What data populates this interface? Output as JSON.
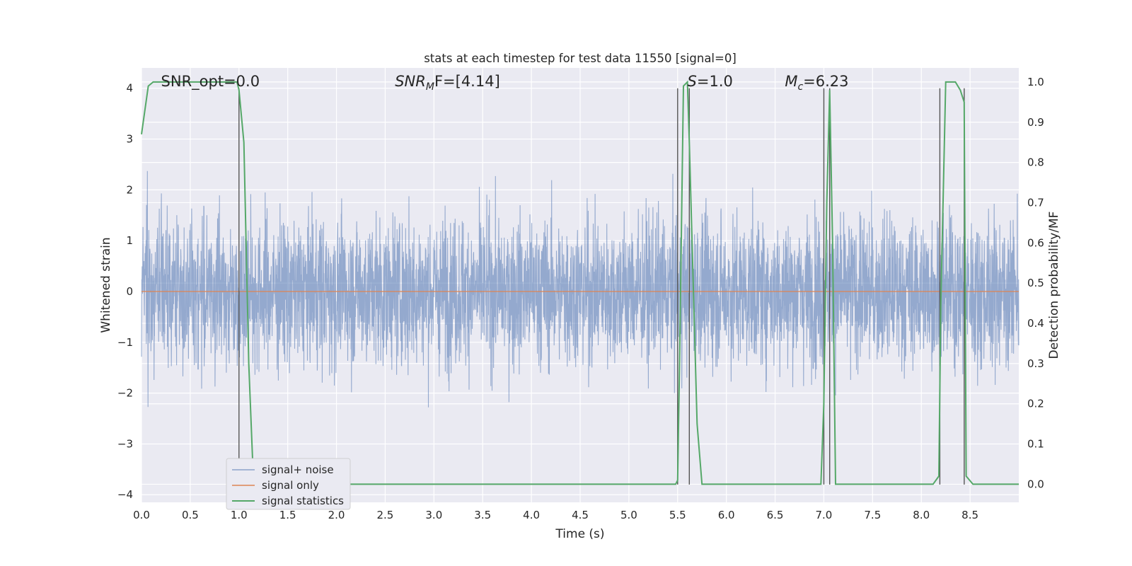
{
  "chart_data": {
    "type": "line",
    "title": "stats at each timestep for test data 11550 [signal=0]",
    "xlabel": "Time (s)",
    "ylabel": "Whitened strain",
    "y2label": "Detection probability/MF",
    "xlim": [
      0.0,
      9.0
    ],
    "ylim": [
      -4.15,
      4.4
    ],
    "y2lim": [
      -0.045,
      1.035
    ],
    "xticks": [
      "0.0",
      "0.5",
      "1.0",
      "1.5",
      "2.0",
      "2.5",
      "3.0",
      "3.5",
      "4.0",
      "4.5",
      "5.0",
      "5.5",
      "6.0",
      "6.5",
      "7.0",
      "7.5",
      "8.0",
      "8.5"
    ],
    "xtick_values": [
      0.0,
      0.5,
      1.0,
      1.5,
      2.0,
      2.5,
      3.0,
      3.5,
      4.0,
      4.5,
      5.0,
      5.5,
      6.0,
      6.5,
      7.0,
      7.5,
      8.0,
      8.5
    ],
    "yticks": [
      "−4",
      "−3",
      "−2",
      "−1",
      "0",
      "1",
      "2",
      "3",
      "4"
    ],
    "ytick_values": [
      -4,
      -3,
      -2,
      -1,
      0,
      1,
      2,
      3,
      4
    ],
    "y2ticks": [
      "0.0",
      "0.1",
      "0.2",
      "0.3",
      "0.4",
      "0.5",
      "0.6",
      "0.7",
      "0.8",
      "0.9",
      "1.0"
    ],
    "y2tick_values": [
      0.0,
      0.1,
      0.2,
      0.3,
      0.4,
      0.5,
      0.6,
      0.7,
      0.8,
      0.9,
      1.0
    ],
    "grid": true,
    "legend_placement": "lower-left",
    "annotations": [
      {
        "text": "SNR_opt=0.0",
        "x": 0.2
      },
      {
        "text": "SNR_MF=[4.14]",
        "x": 2.6,
        "base": "SNR",
        "sub": "M",
        "rest": "F=[4.14]"
      },
      {
        "text": "S=1.0",
        "x": 5.6,
        "base": "S",
        "sub": "",
        "rest": "=1.0"
      },
      {
        "text": "M_c=6.23",
        "x": 6.6,
        "base": "M",
        "sub": "c",
        "rest": "=6.23"
      }
    ],
    "series": [
      {
        "name": "signal+ noise",
        "axis": "left",
        "color": "#4c72b0",
        "kind": "noise",
        "typical_range": [
          -2.2,
          2.8
        ]
      },
      {
        "name": "signal only",
        "axis": "left",
        "color": "#dd8452",
        "kind": "flat",
        "value": 0.0
      },
      {
        "name": "signal statistics",
        "axis": "right",
        "color": "#55a868",
        "kind": "line",
        "x": [
          0.0,
          0.07,
          0.12,
          0.98,
          1.0,
          1.05,
          1.1,
          1.15,
          5.48,
          5.5,
          5.52,
          5.56,
          5.6,
          5.62,
          5.7,
          5.75,
          6.97,
          7.0,
          7.03,
          7.06,
          7.09,
          7.12,
          8.12,
          8.18,
          8.2,
          8.25,
          8.35,
          8.4,
          8.44,
          8.46,
          8.53,
          8.6,
          9.0
        ],
        "y": [
          0.87,
          0.99,
          1.0,
          1.0,
          0.98,
          0.85,
          0.3,
          0.0,
          0.0,
          0.01,
          0.3,
          0.99,
          1.0,
          0.85,
          0.15,
          0.0,
          0.0,
          0.2,
          0.7,
          0.98,
          0.6,
          0.0,
          0.0,
          0.02,
          0.45,
          1.0,
          1.0,
          0.98,
          0.95,
          0.02,
          0.0,
          0.0,
          0.0
        ]
      }
    ],
    "vertical_markers": {
      "color": "#555555",
      "x": [
        1.0,
        5.5,
        5.62,
        7.0,
        7.06,
        8.19,
        8.44
      ],
      "y_bottom": -3.8,
      "y_top": 4.0
    }
  }
}
